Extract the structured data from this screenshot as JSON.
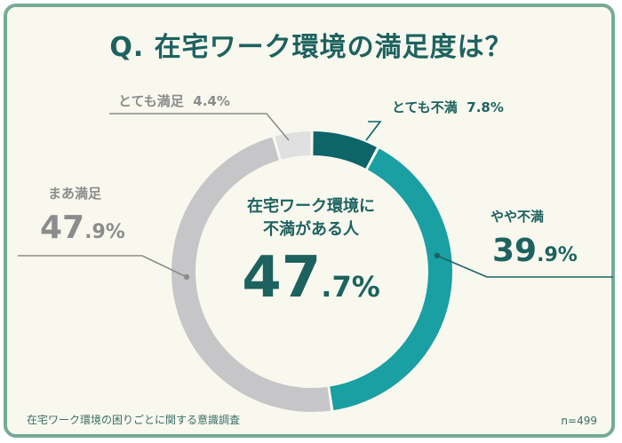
{
  "title": "Q. 在宅ワーク環境の満足度は？",
  "center": {
    "line1": "在宅ワーク環境に",
    "line2": "不満がある人",
    "value_int": "47",
    "value_dec": ".7%"
  },
  "footer": {
    "source": "在宅ワーク環境の困りごとに関する意識調査",
    "sample": "n=499"
  },
  "colors": {
    "frame": "#76ab95",
    "title": "#1d625f",
    "very_dissatisfied": "#0d6469",
    "somewhat_dissatisfied": "#1a9fa2",
    "somewhat_satisfied": "#c6c6c8",
    "very_satisfied": "#e0e0e0",
    "gray_text": "#8c8c8c"
  },
  "chart_data": {
    "type": "pie",
    "variant": "donut",
    "categories": [
      "とても不満",
      "やや不満",
      "まあ満足",
      "とても満足"
    ],
    "values": [
      7.8,
      39.9,
      47.9,
      4.4
    ],
    "labels": {
      "very_dissatisfied": {
        "name": "とても不満",
        "value": "7.8%"
      },
      "somewhat_dissatisfied": {
        "name": "やや不満",
        "int": "39",
        "dec": ".9%"
      },
      "somewhat_satisfied": {
        "name": "まあ満足",
        "int": "47",
        "dec": ".9%"
      },
      "very_satisfied": {
        "name": "とても満足",
        "value": "4.4%"
      }
    }
  }
}
